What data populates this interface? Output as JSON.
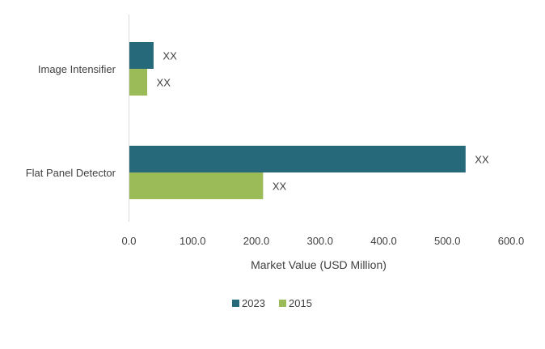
{
  "chart_data": {
    "type": "bar",
    "orientation": "horizontal",
    "categories": [
      "Image Intensifier",
      "Flat Panel Detector"
    ],
    "series": [
      {
        "name": "2023",
        "color": "#26697a",
        "values": [
          38,
          528
        ],
        "labels": [
          "XX",
          "XX"
        ]
      },
      {
        "name": "2015",
        "color": "#9bbb59",
        "values": [
          28,
          210
        ],
        "labels": [
          "XX",
          "XX"
        ]
      }
    ],
    "xlabel": "Market Value (USD Million)",
    "ylabel": "",
    "xlim": [
      0,
      600
    ],
    "xticks": [
      "0.0",
      "100.0",
      "200.0",
      "300.0",
      "400.0",
      "500.0",
      "600.0"
    ],
    "grid": false,
    "legend_position": "bottom"
  }
}
